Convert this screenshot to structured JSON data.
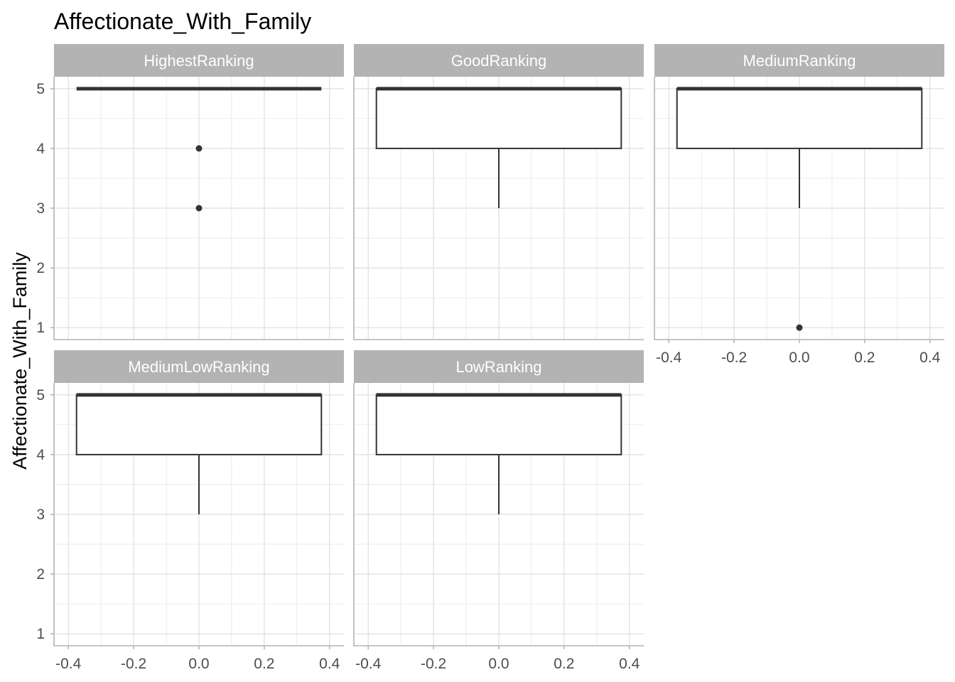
{
  "title": "Affectionate_With_Family",
  "ylabel": "Affectionate_With_Family",
  "colors": {
    "strip_bg": "#b3b3b3",
    "grid": "#dedede",
    "panel_border": "#b3b3b3",
    "box_line": "#333333",
    "tick_text": "#4d4d4d"
  },
  "chart_data": {
    "type": "boxplot",
    "title": "Affectionate_With_Family",
    "ylabel": "Affectionate_With_Family",
    "xlabel": "",
    "x_range": [
      -0.4,
      0.4
    ],
    "y_range": [
      1,
      5
    ],
    "x_ticks": [
      "-0.4",
      "-0.2",
      "0.0",
      "0.2",
      "0.4"
    ],
    "y_ticks": [
      "1",
      "2",
      "3",
      "4",
      "5"
    ],
    "grid": true,
    "facet_layout": "3 columns x 2 rows",
    "panels": [
      {
        "name": "HighestRanking",
        "lower_whisker": 5,
        "q1": 5,
        "median": 5,
        "q3": 5,
        "upper_whisker": 5,
        "outliers": [
          4,
          3
        ]
      },
      {
        "name": "GoodRanking",
        "lower_whisker": 3,
        "q1": 4,
        "median": 5,
        "q3": 5,
        "upper_whisker": 5,
        "outliers": []
      },
      {
        "name": "MediumRanking",
        "lower_whisker": 3,
        "q1": 4,
        "median": 5,
        "q3": 5,
        "upper_whisker": 5,
        "outliers": [
          1
        ]
      },
      {
        "name": "MediumLowRanking",
        "lower_whisker": 3,
        "q1": 4,
        "median": 5,
        "q3": 5,
        "upper_whisker": 5,
        "outliers": []
      },
      {
        "name": "LowRanking",
        "lower_whisker": 3,
        "q1": 4,
        "median": 5,
        "q3": 5,
        "upper_whisker": 5,
        "outliers": []
      }
    ]
  }
}
